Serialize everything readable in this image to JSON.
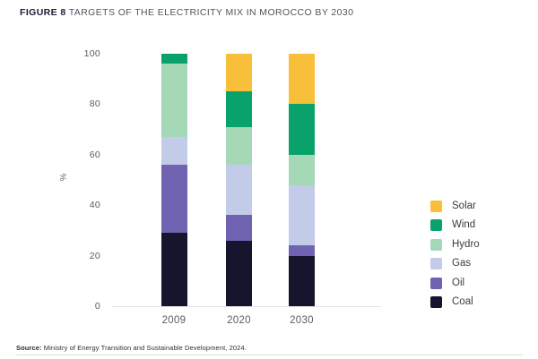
{
  "header": {
    "figure_label": "FIGURE 8",
    "title": "TARGETS OF THE ELECTRICITY MIX IN MOROCCO BY 2030"
  },
  "chart_data": {
    "type": "bar",
    "stacked": true,
    "title": "Targets of the electricity mix in Morocco by 2030",
    "categories": [
      "2009",
      "2020",
      "2030"
    ],
    "series": [
      {
        "name": "Coal",
        "color": "#15152e",
        "values": [
          29,
          26,
          20
        ]
      },
      {
        "name": "Oil",
        "color": "#7064b2",
        "values": [
          27,
          10,
          4
        ]
      },
      {
        "name": "Gas",
        "color": "#c2cce9",
        "values": [
          11,
          20,
          24
        ]
      },
      {
        "name": "Hydro",
        "color": "#a5d8b7",
        "values": [
          29,
          15,
          12
        ]
      },
      {
        "name": "Wind",
        "color": "#0aa26b",
        "values": [
          4,
          14,
          20
        ]
      },
      {
        "name": "Solar",
        "color": "#f7bf3a",
        "values": [
          0,
          15,
          20
        ]
      }
    ],
    "xlabel": "",
    "ylabel": "%",
    "ylim": [
      0,
      100
    ],
    "yticks": [
      0,
      20,
      40,
      60,
      80,
      100
    ],
    "grid": false,
    "legend_position": "right",
    "legend_order": [
      "Solar",
      "Wind",
      "Hydro",
      "Gas",
      "Oil",
      "Coal"
    ]
  },
  "footer": {
    "source_label": "Source:",
    "source_text": " Ministry of Energy Transition and Sustainable Development, 2024."
  }
}
